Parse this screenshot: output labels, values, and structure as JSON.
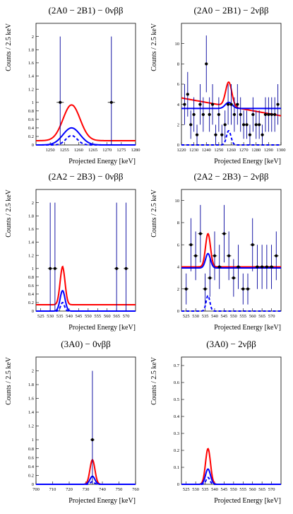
{
  "chart_data": [
    {
      "type": "scatter",
      "title": "(2A0 − 2B1)  −  0νββ",
      "xlabel": "Projected Energy [keV]",
      "ylabel": "Counts / 2.5 keV",
      "xlim": [
        1245,
        1280
      ],
      "ylim": [
        0,
        2.2
      ],
      "ysplit": 1.0,
      "xticks": [
        1250,
        1255,
        1260,
        1265,
        1270,
        1275,
        1280
      ],
      "yticks": [
        0,
        0.2,
        0.4,
        0.6,
        0.8,
        1,
        1.2,
        1.4,
        1.6,
        1.8,
        2
      ],
      "data_points": [
        {
          "x": 1253.5,
          "y": 1,
          "err": 1,
          "xerr": 1.25
        },
        {
          "x": 1271.5,
          "y": 1,
          "err": 1,
          "xerr": 1.25
        }
      ],
      "curves": [
        {
          "style": "red-solid",
          "center": 1257.5,
          "sigma": 3.0,
          "baseline": 0.1,
          "amplitude": 0.84
        },
        {
          "style": "blue-solid",
          "center": 1257.5,
          "sigma": 3.0,
          "baseline": 0.0,
          "amplitude": 0.4
        },
        {
          "style": "blue-dashed",
          "center": 1257.5,
          "sigma": 2.0,
          "baseline": 0.0,
          "amplitude": 0.22
        }
      ],
      "grid": false
    },
    {
      "type": "scatter",
      "title": "(2A0 − 2B1)  −  2νββ",
      "xlabel": "Projected Energy [keV]",
      "ylabel": "Counts / 2.5 keV",
      "xlim": [
        1220,
        1300
      ],
      "ylim": [
        0,
        12
      ],
      "xticks": [
        1220,
        1230,
        1240,
        1250,
        1260,
        1270,
        1280,
        1290,
        1300
      ],
      "yticks": [
        0,
        2,
        4,
        6,
        8,
        10
      ],
      "data_points": [
        {
          "x": 1222.5,
          "y": 4,
          "err": 2.0
        },
        {
          "x": 1225,
          "y": 5,
          "err": 2.2
        },
        {
          "x": 1227.5,
          "y": 2,
          "err": 1.4
        },
        {
          "x": 1230,
          "y": 3,
          "err": 1.7
        },
        {
          "x": 1232.5,
          "y": 1,
          "err": 1.0
        },
        {
          "x": 1235,
          "y": 4,
          "err": 2.0
        },
        {
          "x": 1237.5,
          "y": 3,
          "err": 1.7
        },
        {
          "x": 1240,
          "y": 8,
          "err": 2.8
        },
        {
          "x": 1242.5,
          "y": 3,
          "err": 1.7
        },
        {
          "x": 1245,
          "y": 4,
          "err": 2.0
        },
        {
          "x": 1247.5,
          "y": 1,
          "err": 1.0
        },
        {
          "x": 1250,
          "y": 3,
          "err": 1.7
        },
        {
          "x": 1252.5,
          "y": 1,
          "err": 1.0
        },
        {
          "x": 1255,
          "y": 2,
          "err": 1.4
        },
        {
          "x": 1257.5,
          "y": 4,
          "err": 2.0
        },
        {
          "x": 1260,
          "y": 4,
          "err": 2.0
        },
        {
          "x": 1262.5,
          "y": 3,
          "err": 1.7
        },
        {
          "x": 1265,
          "y": 4,
          "err": 2.0
        },
        {
          "x": 1267.5,
          "y": 3,
          "err": 1.7
        },
        {
          "x": 1270,
          "y": 2,
          "err": 1.4
        },
        {
          "x": 1272.5,
          "y": 2,
          "err": 1.4
        },
        {
          "x": 1275,
          "y": 1,
          "err": 1.0
        },
        {
          "x": 1277.5,
          "y": 3,
          "err": 1.7
        },
        {
          "x": 1280,
          "y": 2,
          "err": 1.4
        },
        {
          "x": 1282.5,
          "y": 2,
          "err": 1.4
        },
        {
          "x": 1285,
          "y": 1,
          "err": 1.0
        },
        {
          "x": 1287.5,
          "y": 3,
          "err": 1.7
        },
        {
          "x": 1290,
          "y": 3,
          "err": 1.7
        },
        {
          "x": 1292.5,
          "y": 3,
          "err": 1.7
        },
        {
          "x": 1295,
          "y": 3,
          "err": 1.7
        },
        {
          "x": 1297.5,
          "y": 4,
          "err": 2.0
        }
      ],
      "curves": [
        {
          "style": "red-solid",
          "center": 1258,
          "sigma": 2.5,
          "baseline": 3.8,
          "slope": -0.022,
          "amplitude": 2.4
        },
        {
          "style": "blue-solid",
          "center": 1258,
          "sigma": 2.8,
          "baseline": 3.6,
          "amplitude": 0.6
        },
        {
          "style": "blue-dashed",
          "center": 1258,
          "sigma": 1.8,
          "baseline": 0.0,
          "amplitude": 1.4
        }
      ],
      "grid": false
    },
    {
      "type": "scatter",
      "title": "(2A2 − 2B3)  −  0νββ",
      "xlabel": "Projected Energy [keV]",
      "ylabel": "Counts / 2.5 keV",
      "xlim": [
        522.5,
        575
      ],
      "ylim": [
        0,
        2.2
      ],
      "ysplit": 1.0,
      "xticks": [
        525,
        530,
        535,
        540,
        545,
        550,
        555,
        560,
        565,
        570
      ],
      "yticks": [
        0,
        0.2,
        0.4,
        0.6,
        0.8,
        1,
        1.2,
        1.4,
        1.6,
        1.8,
        2
      ],
      "data_points": [
        {
          "x": 530,
          "y": 1,
          "err": 1,
          "xerr": 1.25
        },
        {
          "x": 532.5,
          "y": 1,
          "err": 1,
          "xerr": 1.25
        },
        {
          "x": 565,
          "y": 1,
          "err": 1,
          "xerr": 1.25
        },
        {
          "x": 570,
          "y": 1,
          "err": 1,
          "xerr": 1.25
        }
      ],
      "curves": [
        {
          "style": "red-solid",
          "center": 536.5,
          "sigma": 1.3,
          "baseline": 0.15,
          "amplitude": 0.88
        },
        {
          "style": "blue-solid",
          "center": 536.5,
          "sigma": 1.3,
          "baseline": 0.0,
          "amplitude": 0.48
        },
        {
          "style": "blue-dashed",
          "center": 536.5,
          "sigma": 1.0,
          "baseline": 0.0,
          "amplitude": 0.2
        }
      ],
      "grid": false
    },
    {
      "type": "scatter",
      "title": "(2A2 − 2B3)  −  2νββ",
      "xlabel": "Projected Energy [keV]",
      "ylabel": "Counts / 2.5 keV",
      "xlim": [
        522.5,
        575
      ],
      "ylim": [
        0,
        11
      ],
      "xticks": [
        525,
        530,
        535,
        540,
        545,
        550,
        555,
        560,
        565,
        570
      ],
      "yticks": [
        0,
        2,
        4,
        6,
        8,
        10
      ],
      "data_points": [
        {
          "x": 525,
          "y": 2,
          "err": 1.4
        },
        {
          "x": 527.5,
          "y": 6,
          "err": 2.4
        },
        {
          "x": 530,
          "y": 5,
          "err": 2.2
        },
        {
          "x": 532.5,
          "y": 7,
          "err": 2.6
        },
        {
          "x": 535,
          "y": 2,
          "err": 1.4
        },
        {
          "x": 537.5,
          "y": 3,
          "err": 1.7
        },
        {
          "x": 540,
          "y": 5,
          "err": 2.2
        },
        {
          "x": 542.5,
          "y": 4,
          "err": 2.0
        },
        {
          "x": 545,
          "y": 7,
          "err": 2.6
        },
        {
          "x": 547.5,
          "y": 5,
          "err": 2.2
        },
        {
          "x": 550,
          "y": 3,
          "err": 1.7
        },
        {
          "x": 552.5,
          "y": 4,
          "err": 2.0
        },
        {
          "x": 555,
          "y": 2,
          "err": 1.4
        },
        {
          "x": 557.5,
          "y": 2,
          "err": 1.4
        },
        {
          "x": 560,
          "y": 6,
          "err": 2.4
        },
        {
          "x": 562.5,
          "y": 4,
          "err": 2.0
        },
        {
          "x": 565,
          "y": 4,
          "err": 2.0
        },
        {
          "x": 567.5,
          "y": 4,
          "err": 2.0
        },
        {
          "x": 570,
          "y": 4,
          "err": 2.0
        },
        {
          "x": 572.5,
          "y": 5,
          "err": 2.2
        }
      ],
      "curves": [
        {
          "style": "red-solid",
          "center": 536.5,
          "sigma": 1.3,
          "baseline": 4.0,
          "amplitude": 3.0
        },
        {
          "style": "blue-solid",
          "center": 536.5,
          "sigma": 1.3,
          "baseline": 3.9,
          "amplitude": 1.3
        },
        {
          "style": "blue-dashed",
          "center": 536.5,
          "sigma": 1.0,
          "baseline": 0.0,
          "amplitude": 1.4
        }
      ],
      "grid": false
    },
    {
      "type": "scatter",
      "title": "(3A0)  −  0νββ",
      "xlabel": "Projected Energy [keV]",
      "ylabel": "Counts / 2.5 keV",
      "xlim": [
        700,
        760
      ],
      "ylim": [
        0,
        2.2
      ],
      "ysplit": 1.0,
      "xticks": [
        700,
        710,
        720,
        730,
        740,
        750,
        760
      ],
      "yticks": [
        0,
        0.2,
        0.4,
        0.6,
        0.8,
        1,
        1.2,
        1.4,
        1.6,
        1.8,
        2
      ],
      "data_points": [
        {
          "x": 734,
          "y": 1,
          "err": 1,
          "xerr": 1.25
        }
      ],
      "curves": [
        {
          "style": "red-solid",
          "center": 734,
          "sigma": 1.5,
          "baseline": 0.0,
          "amplitude": 0.55
        },
        {
          "style": "blue-solid",
          "center": 734,
          "sigma": 1.5,
          "baseline": 0.0,
          "amplitude": 0.18
        },
        {
          "style": "blue-dashed",
          "center": 734,
          "sigma": 1.1,
          "baseline": 0.0,
          "amplitude": 0.06
        }
      ],
      "grid": false
    },
    {
      "type": "scatter",
      "title": "(3A0)  −  2νββ",
      "xlabel": "Projected Energy [keV]",
      "ylabel": "Counts / 2.5 keV",
      "xlim": [
        522.5,
        575
      ],
      "ylim": [
        0,
        0.75
      ],
      "xticks": [
        525,
        530,
        535,
        540,
        545,
        550,
        555,
        560,
        565,
        570
      ],
      "yticks": [
        0,
        0.1,
        0.2,
        0.3,
        0.4,
        0.5,
        0.6,
        0.7
      ],
      "data_points": [],
      "curves": [
        {
          "style": "red-solid",
          "center": 536.5,
          "sigma": 1.3,
          "baseline": 0.0,
          "amplitude": 0.21
        },
        {
          "style": "blue-solid",
          "center": 536.5,
          "sigma": 1.3,
          "baseline": 0.0,
          "amplitude": 0.09
        },
        {
          "style": "blue-dashed",
          "center": 536.5,
          "sigma": 1.0,
          "baseline": 0.0,
          "amplitude": 0.04
        }
      ],
      "grid": false
    }
  ],
  "colors": {
    "fit_total": "#ff0000",
    "fit_signal": "#0000ff",
    "data_points": "#000000",
    "error_bars": "#00009c"
  }
}
